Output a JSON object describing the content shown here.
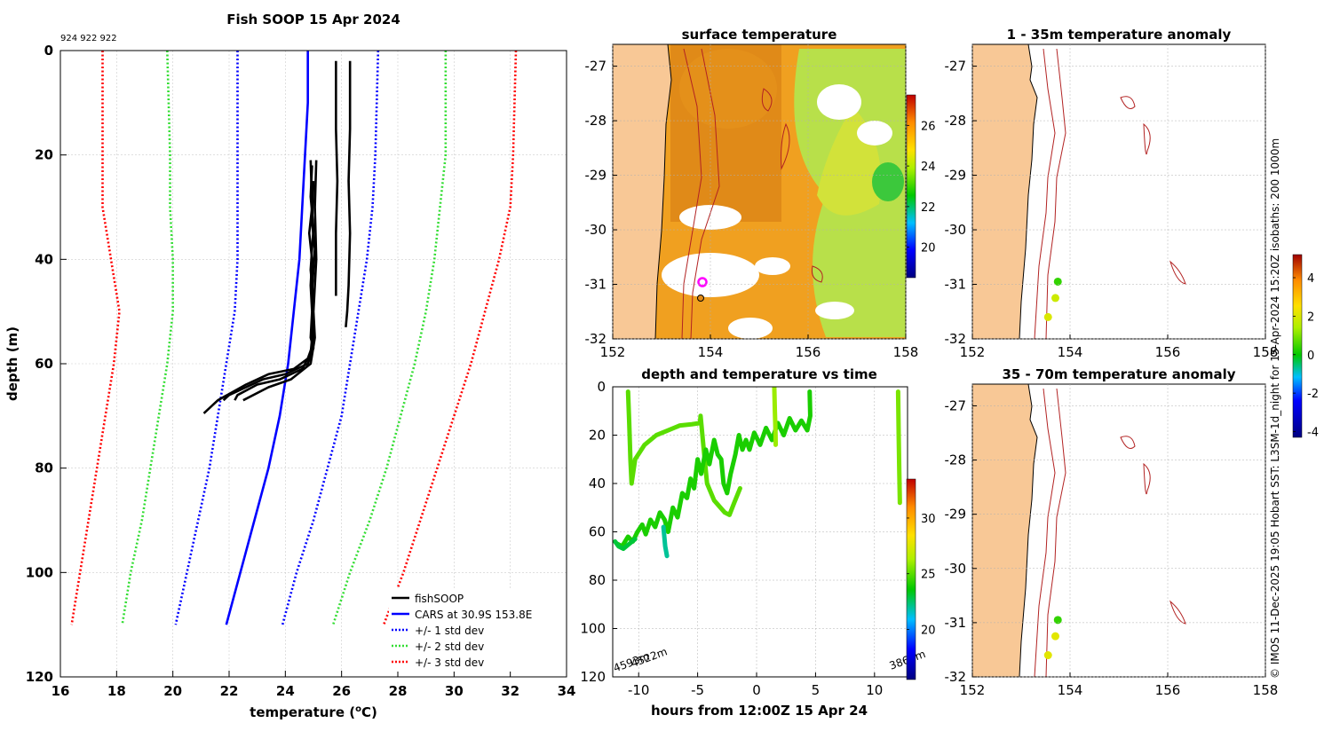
{
  "colors": {
    "land": "#f8c896",
    "coast": "#000000",
    "isobath": "#b22222",
    "fishsoop": "#000000",
    "cars": "#0000ff",
    "std1": "#0000ff",
    "std2": "#33dd33",
    "std3": "#ff0000",
    "grid": "#cccccc"
  },
  "footer_text": "© IMOS 11-Dec-2025 19:05 Hobart SST: L3SM-1d_night for 15-Apr-2024 15:20Z isobaths: 200  1000m",
  "chart_data": [
    {
      "id": "profile",
      "type": "line",
      "title": "Fish SOOP 15 Apr 2024",
      "subtitle": "924 922 922",
      "xlabel_main": "temperature (",
      "xlabel_sup": "o",
      "xlabel_end": "C)",
      "ylabel": "depth (m)",
      "xlim": [
        16,
        34
      ],
      "ylim": [
        120,
        0
      ],
      "xticks": [
        16,
        18,
        20,
        22,
        24,
        26,
        28,
        30,
        32,
        34
      ],
      "yticks": [
        0,
        20,
        40,
        60,
        80,
        100,
        120
      ],
      "legend_position": "bottom-right",
      "legend": [
        "fishSOOP",
        "CARS at 30.9S 153.8E",
        "+/- 1 std dev",
        "+/- 2 std dev",
        "+/- 3 std dev"
      ],
      "cars_mean": [
        [
          24.8,
          0
        ],
        [
          24.8,
          10
        ],
        [
          24.7,
          20
        ],
        [
          24.6,
          30
        ],
        [
          24.5,
          40
        ],
        [
          24.3,
          50
        ],
        [
          24.1,
          60
        ],
        [
          23.8,
          70
        ],
        [
          23.4,
          80
        ],
        [
          22.9,
          90
        ],
        [
          22.4,
          100
        ],
        [
          21.9,
          110
        ]
      ],
      "std_lines": [
        {
          "sigma": 1,
          "points": [
            [
              22.3,
              0
            ],
            [
              22.3,
              20
            ],
            [
              22.3,
              30
            ],
            [
              22.3,
              40
            ],
            [
              22.2,
              50
            ],
            [
              21.9,
              60
            ],
            [
              21.6,
              70
            ],
            [
              21.3,
              80
            ],
            [
              20.9,
              90
            ],
            [
              20.5,
              100
            ],
            [
              20.1,
              110
            ]
          ]
        },
        {
          "sigma": -1,
          "points": [
            [
              27.3,
              0
            ],
            [
              27.2,
              20
            ],
            [
              27.1,
              30
            ],
            [
              26.9,
              40
            ],
            [
              26.6,
              50
            ],
            [
              26.3,
              60
            ],
            [
              26.0,
              70
            ],
            [
              25.5,
              80
            ],
            [
              25.0,
              90
            ],
            [
              24.4,
              100
            ],
            [
              23.9,
              110
            ]
          ]
        },
        {
          "sigma": 2,
          "points": [
            [
              19.8,
              0
            ],
            [
              19.9,
              20
            ],
            [
              19.9,
              30
            ],
            [
              20.0,
              40
            ],
            [
              20.0,
              50
            ],
            [
              19.8,
              60
            ],
            [
              19.5,
              70
            ],
            [
              19.2,
              80
            ],
            [
              18.9,
              90
            ],
            [
              18.5,
              100
            ],
            [
              18.2,
              110
            ]
          ]
        },
        {
          "sigma": -2,
          "points": [
            [
              29.7,
              0
            ],
            [
              29.7,
              20
            ],
            [
              29.5,
              30
            ],
            [
              29.3,
              40
            ],
            [
              29.0,
              50
            ],
            [
              28.6,
              60
            ],
            [
              28.1,
              70
            ],
            [
              27.6,
              80
            ],
            [
              27.0,
              90
            ],
            [
              26.3,
              100
            ],
            [
              25.7,
              110
            ]
          ]
        },
        {
          "sigma": 3,
          "points": [
            [
              17.5,
              0
            ],
            [
              17.5,
              20
            ],
            [
              17.5,
              30
            ],
            [
              17.8,
              40
            ],
            [
              18.1,
              50
            ],
            [
              17.9,
              60
            ],
            [
              17.6,
              70
            ],
            [
              17.3,
              80
            ],
            [
              17.0,
              90
            ],
            [
              16.7,
              100
            ],
            [
              16.4,
              110
            ]
          ]
        },
        {
          "sigma": -3,
          "points": [
            [
              32.2,
              0
            ],
            [
              32.1,
              20
            ],
            [
              32.0,
              30
            ],
            [
              31.6,
              40
            ],
            [
              31.1,
              50
            ],
            [
              30.6,
              60
            ],
            [
              30.0,
              70
            ],
            [
              29.4,
              80
            ],
            [
              28.8,
              90
            ],
            [
              28.2,
              100
            ],
            [
              27.5,
              110
            ]
          ]
        }
      ],
      "fishsoop_casts": [
        [
          [
            24.9,
            21
          ],
          [
            24.95,
            30
          ],
          [
            24.85,
            35
          ],
          [
            24.95,
            40
          ],
          [
            24.9,
            45
          ],
          [
            24.95,
            50
          ],
          [
            24.9,
            55
          ],
          [
            25.0,
            57
          ],
          [
            24.8,
            60
          ],
          [
            24.0,
            62
          ],
          [
            23.2,
            63
          ],
          [
            22.4,
            65
          ],
          [
            22.0,
            66
          ],
          [
            21.8,
            67
          ]
        ],
        [
          [
            24.95,
            22
          ],
          [
            24.9,
            28
          ],
          [
            25.0,
            34
          ],
          [
            24.9,
            42
          ],
          [
            25.0,
            48
          ],
          [
            24.95,
            53
          ],
          [
            25.0,
            56
          ],
          [
            24.8,
            59
          ],
          [
            24.3,
            61
          ],
          [
            23.4,
            62
          ],
          [
            22.6,
            64
          ],
          [
            21.6,
            67
          ],
          [
            21.1,
            69.5
          ]
        ],
        [
          [
            25.0,
            25
          ],
          [
            24.95,
            33
          ],
          [
            25.05,
            38
          ],
          [
            24.95,
            46
          ],
          [
            25.0,
            52
          ],
          [
            24.9,
            58
          ],
          [
            24.6,
            61
          ],
          [
            23.8,
            63
          ],
          [
            23.0,
            64
          ],
          [
            22.3,
            66
          ],
          [
            22.2,
            67
          ]
        ],
        [
          [
            25.1,
            21
          ],
          [
            25.05,
            30
          ],
          [
            25.1,
            40
          ],
          [
            25.0,
            50
          ],
          [
            25.05,
            55
          ],
          [
            24.9,
            60
          ],
          [
            24.2,
            63
          ],
          [
            23.4,
            64.5
          ],
          [
            22.5,
            67
          ]
        ],
        [
          [
            25.8,
            2
          ],
          [
            25.8,
            15
          ],
          [
            25.85,
            25
          ],
          [
            25.8,
            35
          ],
          [
            25.8,
            47
          ]
        ],
        [
          [
            26.3,
            2
          ],
          [
            26.3,
            15
          ],
          [
            26.25,
            25
          ],
          [
            26.3,
            35
          ],
          [
            26.25,
            45
          ],
          [
            26.2,
            50
          ],
          [
            26.15,
            53
          ]
        ]
      ]
    },
    {
      "id": "surface_temperature",
      "type": "heatmap",
      "title": "surface temperature",
      "xlim": [
        152,
        158
      ],
      "ylim": [
        -32,
        -26.6
      ],
      "xticks": [
        152,
        154,
        156,
        158
      ],
      "yticks": [
        -27,
        -28,
        -29,
        -30,
        -31,
        -32
      ],
      "colorbar_range": [
        18.5,
        27.5
      ],
      "colorbar_ticks": [
        20,
        22,
        24,
        26
      ]
    },
    {
      "id": "anomaly_shallow",
      "type": "scatter",
      "title": "1 - 35m temperature anomaly",
      "xlim": [
        152,
        158
      ],
      "ylim": [
        -32,
        -26.6
      ],
      "xticks": [
        152,
        154,
        156,
        158
      ],
      "yticks": [
        -27,
        -28,
        -29,
        -30,
        -31,
        -32
      ],
      "points": [
        {
          "lon": 153.75,
          "lat": -30.95,
          "anom": 0.4
        },
        {
          "lon": 153.7,
          "lat": -31.25,
          "anom": 1.8
        },
        {
          "lon": 153.55,
          "lat": -31.6,
          "anom": 2.0
        }
      ]
    },
    {
      "id": "anomaly_deep",
      "type": "scatter",
      "title": "35 - 70m temperature anomaly",
      "xlim": [
        152,
        158
      ],
      "ylim": [
        -32,
        -26.6
      ],
      "xticks": [
        152,
        154,
        156,
        158
      ],
      "yticks": [
        -27,
        -28,
        -29,
        -30,
        -31,
        -32
      ],
      "points": [
        {
          "lon": 153.75,
          "lat": -30.95,
          "anom": 0.4
        },
        {
          "lon": 153.7,
          "lat": -31.25,
          "anom": 2.1
        },
        {
          "lon": 153.55,
          "lat": -31.6,
          "anom": 2.1
        }
      ]
    },
    {
      "id": "anomaly_colorbar",
      "type": "heatmap",
      "range": [
        -4.3,
        5.2
      ],
      "ticks": [
        -4,
        -2,
        0,
        2,
        4
      ]
    },
    {
      "id": "depth_time",
      "type": "scatter",
      "title": "depth and temperature vs time",
      "xlabel": "hours from 12:00Z 15 Apr 24",
      "xlim": [
        -12.2,
        12.8
      ],
      "ylim": [
        120,
        0
      ],
      "xticks": [
        -10,
        -5,
        0,
        5,
        10
      ],
      "yticks": [
        0,
        20,
        40,
        60,
        80,
        100,
        120
      ],
      "colorbar_range": [
        15.5,
        33.5
      ],
      "colorbar_ticks": [
        20,
        25,
        30
      ],
      "annotations": [
        {
          "text": "4593m",
          "hour": -12.0,
          "depth": 118
        },
        {
          "text": "4522m",
          "hour": -10.5,
          "depth": 116
        },
        {
          "text": "3860m",
          "hour": 11.4,
          "depth": 117
        }
      ],
      "series": [
        {
          "temp": 25.0,
          "points": [
            [
              -10.9,
              2
            ],
            [
              -10.8,
              15
            ],
            [
              -10.7,
              30
            ],
            [
              -10.6,
              40
            ],
            [
              -10.3,
              30
            ],
            [
              -9.5,
              24
            ],
            [
              -8.5,
              20
            ],
            [
              -7.5,
              18
            ],
            [
              -6.5,
              16
            ],
            [
              -5.5,
              15.5
            ],
            [
              -4.8,
              15
            ],
            [
              -4.75,
              12
            ],
            [
              -4.5,
              25
            ],
            [
              -4.2,
              40
            ],
            [
              -3.6,
              47
            ],
            [
              -2.7,
              52
            ],
            [
              -2.3,
              53
            ],
            [
              -1.9,
              48
            ],
            [
              -1.4,
              42
            ]
          ]
        },
        {
          "temp": 24.0,
          "points": [
            [
              -11.8,
              65
            ],
            [
              -11.4,
              66
            ],
            [
              -10.9,
              62
            ],
            [
              -10.5,
              64
            ],
            [
              -10.1,
              60
            ],
            [
              -9.7,
              57
            ],
            [
              -9.4,
              61
            ],
            [
              -9.0,
              55
            ],
            [
              -8.6,
              58
            ],
            [
              -8.2,
              52
            ],
            [
              -7.8,
              55
            ],
            [
              -7.5,
              60
            ],
            [
              -7.1,
              50
            ],
            [
              -6.7,
              54
            ],
            [
              -6.3,
              44
            ],
            [
              -5.9,
              46
            ],
            [
              -5.6,
              38
            ],
            [
              -5.3,
              42
            ],
            [
              -5.0,
              30
            ],
            [
              -4.7,
              36
            ],
            [
              -4.3,
              26
            ],
            [
              -4.0,
              32
            ],
            [
              -3.6,
              22
            ],
            [
              -3.3,
              28
            ],
            [
              -3.0,
              30
            ],
            [
              -2.8,
              40
            ],
            [
              -2.5,
              44
            ],
            [
              -2.2,
              36
            ],
            [
              -1.8,
              28
            ],
            [
              -1.5,
              20
            ],
            [
              -1.2,
              26
            ],
            [
              -0.9,
              22
            ],
            [
              -0.6,
              26
            ],
            [
              -0.2,
              19
            ],
            [
              0.3,
              24
            ],
            [
              0.8,
              17
            ],
            [
              1.3,
              22
            ],
            [
              1.8,
              15
            ],
            [
              2.3,
              20
            ],
            [
              2.8,
              13
            ],
            [
              3.3,
              18
            ],
            [
              3.8,
              14
            ],
            [
              4.3,
              18
            ],
            [
              4.55,
              12
            ],
            [
              4.5,
              2
            ]
          ]
        },
        {
          "temp": 23.0,
          "points": [
            [
              -12.0,
              64
            ],
            [
              -11.7,
              66
            ],
            [
              -11.3,
              67
            ],
            [
              -10.8,
              65
            ],
            [
              -10.3,
              63
            ]
          ]
        },
        {
          "temp": 22.0,
          "points": [
            [
              -7.9,
              58
            ],
            [
              -7.75,
              66
            ],
            [
              -7.6,
              70
            ]
          ]
        },
        {
          "temp": 26.0,
          "points": [
            [
              1.5,
              0
            ],
            [
              1.55,
              10
            ],
            [
              1.6,
              18
            ],
            [
              1.62,
              24
            ]
          ]
        },
        {
          "temp": 25.5,
          "points": [
            [
              12.0,
              2
            ],
            [
              12.05,
              20
            ],
            [
              12.1,
              35
            ],
            [
              12.15,
              48
            ]
          ]
        }
      ]
    }
  ]
}
